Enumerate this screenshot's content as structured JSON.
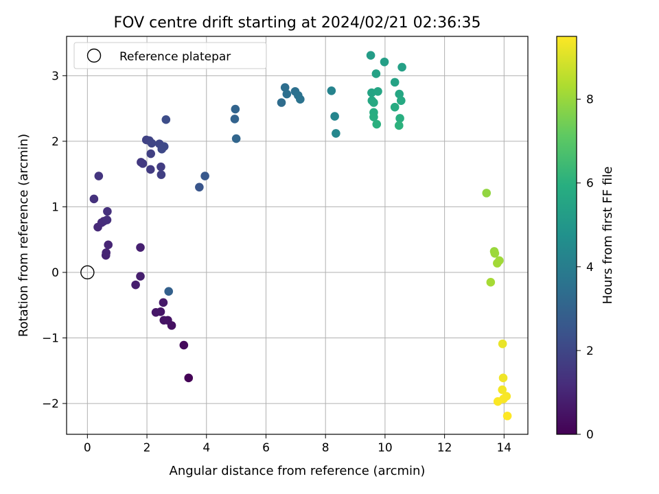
{
  "chart_data": {
    "type": "scatter",
    "title": "FOV centre drift starting at 2024/02/21 02:36:35",
    "xlabel": "Angular distance from reference (arcmin)",
    "ylabel": "Rotation from reference (arcmin)",
    "xlim": [
      -0.7,
      14.8
    ],
    "ylim": [
      -2.47,
      3.6
    ],
    "xticks": [
      0,
      2,
      4,
      6,
      8,
      10,
      12,
      14
    ],
    "yticks": [
      -2,
      -1,
      0,
      1,
      2,
      3
    ],
    "grid": true,
    "legend": {
      "position": "top-left",
      "entries": [
        "Reference platepar"
      ]
    },
    "reference_point": {
      "x": 0,
      "y": 0,
      "label": "Reference platepar",
      "marker": "open-circle"
    },
    "colorbar": {
      "label": "Hours from first FF file",
      "colormap": "viridis",
      "range": [
        0,
        9.5
      ],
      "ticks": [
        0,
        2,
        4,
        6,
        8
      ]
    },
    "points": [
      {
        "x": 3.4,
        "y": -1.61,
        "c": 0.05
      },
      {
        "x": 3.24,
        "y": -1.11,
        "c": 0.25
      },
      {
        "x": 2.83,
        "y": -0.81,
        "c": 0.4
      },
      {
        "x": 2.7,
        "y": -0.73,
        "c": 0.45
      },
      {
        "x": 2.57,
        "y": -0.73,
        "c": 0.5
      },
      {
        "x": 2.46,
        "y": -0.6,
        "c": 0.55
      },
      {
        "x": 2.3,
        "y": -0.61,
        "c": 0.6
      },
      {
        "x": 2.55,
        "y": -0.46,
        "c": 0.65
      },
      {
        "x": 1.62,
        "y": -0.19,
        "c": 0.75
      },
      {
        "x": 1.78,
        "y": -0.06,
        "c": 0.8
      },
      {
        "x": 1.78,
        "y": 0.38,
        "c": 0.85
      },
      {
        "x": 0.62,
        "y": 0.26,
        "c": 0.9
      },
      {
        "x": 0.63,
        "y": 0.3,
        "c": 0.95
      },
      {
        "x": 0.7,
        "y": 0.42,
        "c": 1.0
      },
      {
        "x": 0.35,
        "y": 0.69,
        "c": 1.1
      },
      {
        "x": 0.48,
        "y": 0.76,
        "c": 1.15
      },
      {
        "x": 0.55,
        "y": 0.78,
        "c": 1.2
      },
      {
        "x": 0.66,
        "y": 0.8,
        "c": 1.25
      },
      {
        "x": 0.67,
        "y": 0.93,
        "c": 1.3
      },
      {
        "x": 0.22,
        "y": 1.12,
        "c": 1.35
      },
      {
        "x": 0.38,
        "y": 1.47,
        "c": 1.45
      },
      {
        "x": 1.8,
        "y": 1.68,
        "c": 1.55
      },
      {
        "x": 1.86,
        "y": 1.66,
        "c": 1.6
      },
      {
        "x": 2.12,
        "y": 1.57,
        "c": 1.65
      },
      {
        "x": 2.47,
        "y": 1.61,
        "c": 1.7
      },
      {
        "x": 2.48,
        "y": 1.49,
        "c": 1.75
      },
      {
        "x": 2.13,
        "y": 1.81,
        "c": 1.8
      },
      {
        "x": 1.98,
        "y": 2.02,
        "c": 1.85
      },
      {
        "x": 2.08,
        "y": 2.01,
        "c": 1.9
      },
      {
        "x": 2.16,
        "y": 1.97,
        "c": 1.95
      },
      {
        "x": 2.42,
        "y": 1.96,
        "c": 2.0
      },
      {
        "x": 2.5,
        "y": 1.88,
        "c": 2.05
      },
      {
        "x": 2.58,
        "y": 1.92,
        "c": 2.1
      },
      {
        "x": 2.64,
        "y": 2.33,
        "c": 2.2
      },
      {
        "x": 3.76,
        "y": 1.3,
        "c": 2.5
      },
      {
        "x": 3.95,
        "y": 1.47,
        "c": 2.6
      },
      {
        "x": 2.73,
        "y": -0.29,
        "c": 2.9
      },
      {
        "x": 4.95,
        "y": 2.34,
        "c": 3.0
      },
      {
        "x": 4.97,
        "y": 2.49,
        "c": 3.05
      },
      {
        "x": 5.0,
        "y": 2.04,
        "c": 3.1
      },
      {
        "x": 6.52,
        "y": 2.59,
        "c": 3.35
      },
      {
        "x": 6.64,
        "y": 2.82,
        "c": 3.4
      },
      {
        "x": 6.7,
        "y": 2.72,
        "c": 3.45
      },
      {
        "x": 6.98,
        "y": 2.76,
        "c": 3.5
      },
      {
        "x": 7.08,
        "y": 2.7,
        "c": 3.55
      },
      {
        "x": 7.15,
        "y": 2.64,
        "c": 3.6
      },
      {
        "x": 8.2,
        "y": 2.77,
        "c": 4.2
      },
      {
        "x": 8.31,
        "y": 2.38,
        "c": 4.3
      },
      {
        "x": 8.35,
        "y": 2.12,
        "c": 4.35
      },
      {
        "x": 9.52,
        "y": 3.31,
        "c": 5.2
      },
      {
        "x": 9.98,
        "y": 3.21,
        "c": 5.3
      },
      {
        "x": 10.57,
        "y": 3.13,
        "c": 5.35
      },
      {
        "x": 9.7,
        "y": 3.03,
        "c": 5.4
      },
      {
        "x": 10.33,
        "y": 2.9,
        "c": 5.45
      },
      {
        "x": 9.55,
        "y": 2.74,
        "c": 5.5
      },
      {
        "x": 9.76,
        "y": 2.76,
        "c": 5.55
      },
      {
        "x": 10.48,
        "y": 2.72,
        "c": 5.6
      },
      {
        "x": 9.56,
        "y": 2.62,
        "c": 5.65
      },
      {
        "x": 9.62,
        "y": 2.59,
        "c": 5.7
      },
      {
        "x": 10.54,
        "y": 2.62,
        "c": 5.75
      },
      {
        "x": 10.33,
        "y": 2.52,
        "c": 5.8
      },
      {
        "x": 9.62,
        "y": 2.44,
        "c": 5.85
      },
      {
        "x": 9.62,
        "y": 2.37,
        "c": 5.9
      },
      {
        "x": 10.5,
        "y": 2.35,
        "c": 5.95
      },
      {
        "x": 9.72,
        "y": 2.26,
        "c": 6.0
      },
      {
        "x": 10.47,
        "y": 2.24,
        "c": 6.05
      },
      {
        "x": 13.41,
        "y": 1.21,
        "c": 7.9
      },
      {
        "x": 13.67,
        "y": 0.32,
        "c": 8.0
      },
      {
        "x": 13.69,
        "y": 0.29,
        "c": 8.05
      },
      {
        "x": 13.84,
        "y": 0.18,
        "c": 8.1
      },
      {
        "x": 13.77,
        "y": 0.14,
        "c": 8.15
      },
      {
        "x": 13.55,
        "y": -0.15,
        "c": 8.2
      },
      {
        "x": 13.95,
        "y": -1.09,
        "c": 9.2
      },
      {
        "x": 13.97,
        "y": -1.61,
        "c": 9.3
      },
      {
        "x": 13.94,
        "y": -1.79,
        "c": 9.35
      },
      {
        "x": 14.08,
        "y": -1.89,
        "c": 9.4
      },
      {
        "x": 13.98,
        "y": -1.93,
        "c": 9.42
      },
      {
        "x": 13.79,
        "y": -1.97,
        "c": 9.45
      },
      {
        "x": 14.11,
        "y": -2.19,
        "c": 9.5
      }
    ]
  }
}
